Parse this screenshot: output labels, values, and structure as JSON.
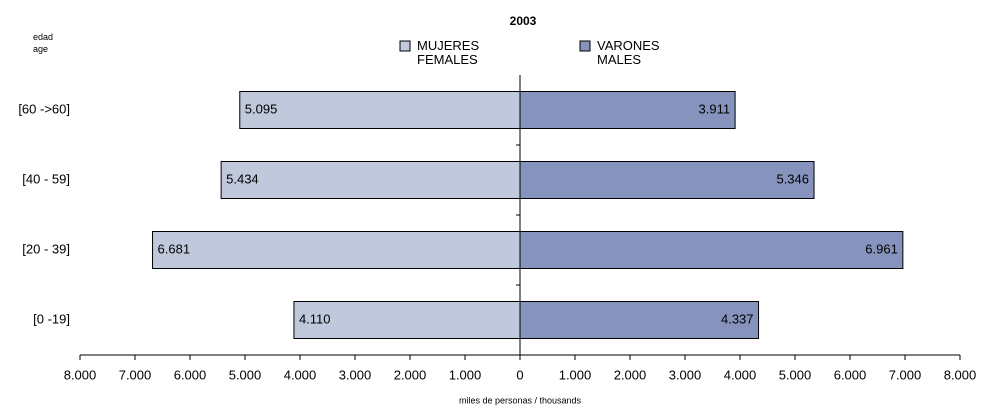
{
  "chart_data": {
    "type": "pyramid",
    "title": "2003",
    "y_axis_label": "edad\nage",
    "x_axis_label": "miles de personas / thousands",
    "categories": [
      "[60 ->60]",
      "[40 - 59]",
      "[20 - 39]",
      "[0 -19]"
    ],
    "series": [
      {
        "name": "MUJERES\nFEMALES",
        "color": "#c0c8dc",
        "side": "left",
        "values": [
          5095,
          5434,
          6681,
          4110
        ],
        "value_labels": [
          "5.095",
          "5.434",
          "6.681",
          "4.110"
        ]
      },
      {
        "name": "VARONES\nMALES",
        "color": "#8593bd",
        "side": "right",
        "values": [
          3911,
          5346,
          6961,
          4337
        ],
        "value_labels": [
          "3.911",
          "5.346",
          "6.961",
          "4.337"
        ]
      }
    ],
    "xlim": [
      -8000,
      8000
    ],
    "xticks": [
      {
        "value": -8000,
        "label": "8.000"
      },
      {
        "value": -7000,
        "label": "7.000"
      },
      {
        "value": -6000,
        "label": "6.000"
      },
      {
        "value": -5000,
        "label": "5.000"
      },
      {
        "value": -4000,
        "label": "4.000"
      },
      {
        "value": -3000,
        "label": "3.000"
      },
      {
        "value": -2000,
        "label": "2.000"
      },
      {
        "value": -1000,
        "label": "1.000"
      },
      0,
      {
        "value": 1000,
        "label": "1.000"
      },
      {
        "value": 2000,
        "label": "2.000"
      },
      {
        "value": 3000,
        "label": "3.000"
      },
      {
        "value": 4000,
        "label": "4.000"
      },
      {
        "value": 5000,
        "label": "5.000"
      },
      {
        "value": 6000,
        "label": "6.000"
      },
      {
        "value": 7000,
        "label": "7.000"
      },
      {
        "value": 8000,
        "label": "8.000"
      }
    ]
  }
}
